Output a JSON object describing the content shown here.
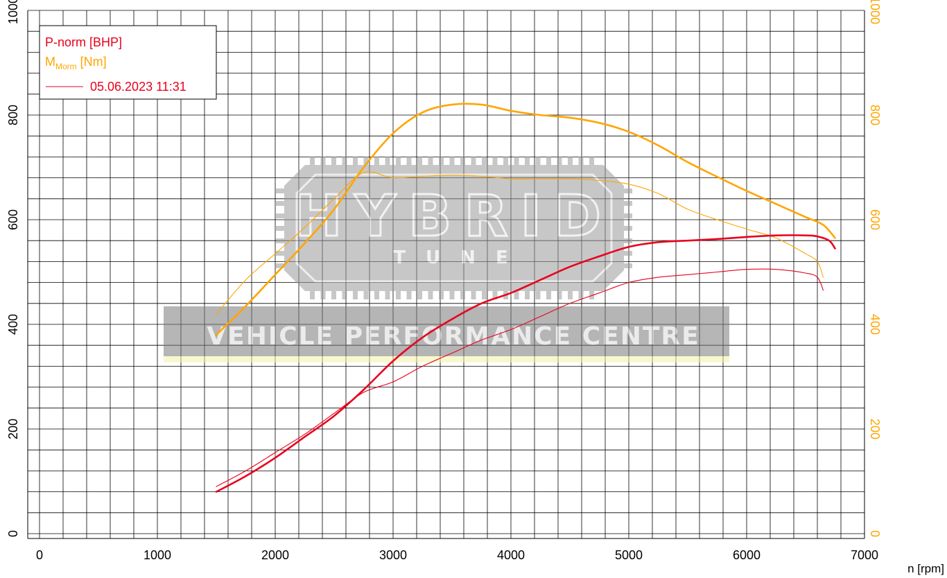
{
  "chart_data": {
    "type": "line",
    "xlabel": "n [rpm]",
    "xlim": [
      0,
      7000
    ],
    "x_ticks": [
      0,
      1000,
      2000,
      3000,
      4000,
      5000,
      6000,
      7000
    ],
    "ylim_left": [
      0,
      1000
    ],
    "y_ticks_left": [
      0,
      200,
      400,
      600,
      800,
      1000
    ],
    "ylim_right": [
      0,
      1000
    ],
    "y_ticks_right": [
      0,
      200,
      400,
      600,
      800,
      1000
    ],
    "grid": true,
    "legend_position": "top-left",
    "legend": {
      "power_label": "P-norm [BHP]",
      "torque_label_main": "M",
      "torque_label_sub": "Morm",
      "torque_label_unit": " [Nm]",
      "run_label": "05.06.2023 11:31"
    },
    "watermark": {
      "logo_text": "HYBRID",
      "logo_sub": "T U N E",
      "banner_text": "VEHICLE PERFORMANCE CENTRE"
    },
    "colors": {
      "power": "#e8001c",
      "torque": "#ffa500",
      "grid": "#000000"
    },
    "series": [
      {
        "name": "P-norm [BHP]",
        "axis": "left",
        "stroke": "thick",
        "points": [
          [
            1500,
            80
          ],
          [
            1750,
            110
          ],
          [
            2000,
            145
          ],
          [
            2250,
            185
          ],
          [
            2500,
            225
          ],
          [
            2750,
            275
          ],
          [
            3000,
            330
          ],
          [
            3250,
            375
          ],
          [
            3500,
            410
          ],
          [
            3750,
            440
          ],
          [
            4000,
            460
          ],
          [
            4250,
            485
          ],
          [
            4500,
            510
          ],
          [
            4750,
            530
          ],
          [
            5000,
            548
          ],
          [
            5250,
            557
          ],
          [
            5500,
            560
          ],
          [
            5750,
            563
          ],
          [
            6000,
            567
          ],
          [
            6250,
            570
          ],
          [
            6500,
            570
          ],
          [
            6600,
            568
          ],
          [
            6700,
            560
          ],
          [
            6750,
            545
          ]
        ]
      },
      {
        "name": "P-norm [BHP]",
        "axis": "left",
        "stroke": "thin",
        "points": [
          [
            1500,
            90
          ],
          [
            1750,
            120
          ],
          [
            2000,
            155
          ],
          [
            2250,
            190
          ],
          [
            2500,
            230
          ],
          [
            2750,
            270
          ],
          [
            3000,
            290
          ],
          [
            3250,
            320
          ],
          [
            3500,
            345
          ],
          [
            3750,
            370
          ],
          [
            4000,
            390
          ],
          [
            4250,
            415
          ],
          [
            4500,
            440
          ],
          [
            4750,
            460
          ],
          [
            5000,
            480
          ],
          [
            5250,
            490
          ],
          [
            5500,
            495
          ],
          [
            5750,
            500
          ],
          [
            6000,
            505
          ],
          [
            6250,
            505
          ],
          [
            6500,
            498
          ],
          [
            6600,
            490
          ],
          [
            6650,
            465
          ]
        ]
      },
      {
        "name": "M [Nm]",
        "axis": "right",
        "stroke": "thick",
        "points": [
          [
            1500,
            380
          ],
          [
            1750,
            435
          ],
          [
            2000,
            495
          ],
          [
            2250,
            555
          ],
          [
            2500,
            620
          ],
          [
            2750,
            700
          ],
          [
            3000,
            765
          ],
          [
            3250,
            805
          ],
          [
            3500,
            820
          ],
          [
            3750,
            820
          ],
          [
            4000,
            808
          ],
          [
            4250,
            800
          ],
          [
            4500,
            795
          ],
          [
            4750,
            785
          ],
          [
            5000,
            768
          ],
          [
            5250,
            742
          ],
          [
            5500,
            710
          ],
          [
            5750,
            682
          ],
          [
            6000,
            655
          ],
          [
            6250,
            630
          ],
          [
            6500,
            605
          ],
          [
            6650,
            590
          ],
          [
            6750,
            565
          ]
        ]
      },
      {
        "name": "M [Nm]",
        "axis": "right",
        "stroke": "thin",
        "points": [
          [
            1500,
            420
          ],
          [
            1750,
            485
          ],
          [
            2000,
            535
          ],
          [
            2250,
            585
          ],
          [
            2500,
            640
          ],
          [
            2750,
            690
          ],
          [
            3000,
            680
          ],
          [
            3250,
            683
          ],
          [
            3500,
            685
          ],
          [
            3750,
            683
          ],
          [
            4000,
            678
          ],
          [
            4250,
            678
          ],
          [
            4500,
            678
          ],
          [
            4750,
            675
          ],
          [
            5000,
            668
          ],
          [
            5250,
            650
          ],
          [
            5500,
            620
          ],
          [
            5750,
            600
          ],
          [
            6000,
            582
          ],
          [
            6250,
            565
          ],
          [
            6500,
            535
          ],
          [
            6600,
            520
          ],
          [
            6650,
            490
          ]
        ]
      }
    ]
  }
}
